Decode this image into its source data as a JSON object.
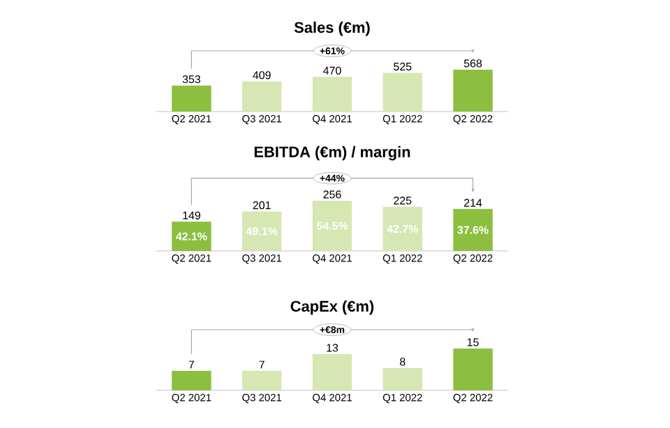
{
  "chart_data": [
    {
      "type": "bar",
      "title": "Sales (€m)",
      "categories": [
        "Q2 2021",
        "Q3 2021",
        "Q4 2021",
        "Q1 2022",
        "Q2 2022"
      ],
      "values": [
        353,
        409,
        470,
        525,
        568
      ],
      "colors": [
        "#8cbf3f",
        "#d6e7b3",
        "#d6e7b3",
        "#d6e7b3",
        "#8cbf3f"
      ],
      "data_labels": true,
      "tick_labels": "x",
      "annotations": [
        "+61%"
      ]
    },
    {
      "type": "bar",
      "title": "EBITDA (€m) / margin",
      "categories": [
        "Q2 2021",
        "Q3 2021",
        "Q4 2021",
        "Q1 2022",
        "Q2 2022"
      ],
      "values": [
        149,
        201,
        256,
        225,
        214
      ],
      "colors": [
        "#8cbf3f",
        "#d6e7b3",
        "#d6e7b3",
        "#d6e7b3",
        "#8cbf3f"
      ],
      "data_labels": true,
      "tick_labels": "x",
      "annotations": [
        "+44%",
        "42.1%",
        "49.1%",
        "54.5%",
        "42.7%",
        "37.6%"
      ]
    },
    {
      "type": "bar",
      "title": "CapEx (€m)",
      "categories": [
        "Q2 2021",
        "Q3 2021",
        "Q4 2021",
        "Q1 2022",
        "Q2 2022"
      ],
      "values": [
        7,
        7,
        13,
        8,
        15
      ],
      "colors": [
        "#8cbf3f",
        "#d6e7b3",
        "#d6e7b3",
        "#d6e7b3",
        "#8cbf3f"
      ],
      "data_labels": true,
      "tick_labels": "x",
      "annotations": [
        "+€8m"
      ]
    }
  ]
}
